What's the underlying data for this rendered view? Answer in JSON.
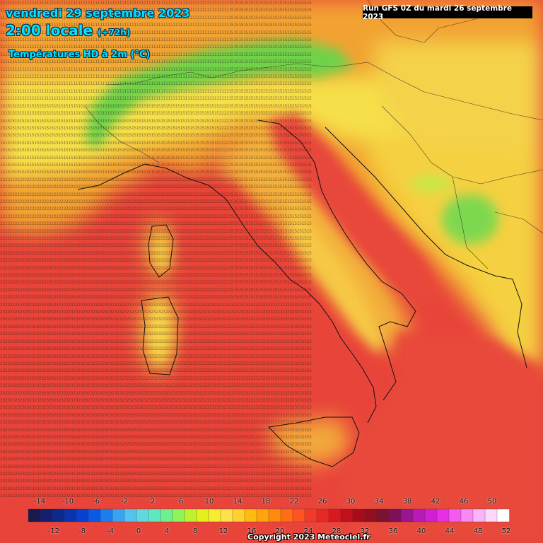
{
  "header": {
    "date_line": "vendredi 29 septembre 2023",
    "time_line": "2:00 locale",
    "forecast_offset": "(+72h)",
    "field_title": "Températures HD à 2m (°C)"
  },
  "run_box": "Run GFS 0Z du mardi 26 septembre 2023",
  "legend": {
    "top_ticks": [
      "-14",
      "-10",
      "-6",
      "-2",
      "2",
      "6",
      "10",
      "14",
      "18",
      "22",
      "26",
      "30",
      "34",
      "38",
      "42",
      "46",
      "50"
    ],
    "bottom_ticks": [
      "-12",
      "-8",
      "-4",
      "0",
      "4",
      "8",
      "12",
      "16",
      "20",
      "24",
      "28",
      "32",
      "36",
      "40",
      "44",
      "48",
      "52"
    ],
    "colors": [
      "#1a1a4e",
      "#14206e",
      "#0c2a8e",
      "#0a33b0",
      "#0842d0",
      "#0a5ae6",
      "#1e7ef0",
      "#3aa2f2",
      "#52c4ef",
      "#5fd9e0",
      "#5ee8bf",
      "#6ff08f",
      "#8ef45c",
      "#bff22e",
      "#e4f01c",
      "#f6ec30",
      "#ffe24a",
      "#ffd02e",
      "#ffbb12",
      "#ffa40e",
      "#ff8a10",
      "#ff6e16",
      "#ff5320",
      "#f23a28",
      "#e82826",
      "#d81a20",
      "#c0101c",
      "#a80c1c",
      "#901020",
      "#7a1232",
      "#800f5a",
      "#9b1490",
      "#b81ab8",
      "#d21ed4",
      "#e82fe8",
      "#f25af0",
      "#f68af4",
      "#fab4f8",
      "#fcd8fa",
      "#ffffff"
    ],
    "colors_note": "approximate palette"
  },
  "copyright": "Copyright 2023 Meteociel.fr",
  "colors": {
    "accent_text": "#00e5ff",
    "sea_red": "#e84a3a",
    "mountain_green": "#55d04a"
  }
}
